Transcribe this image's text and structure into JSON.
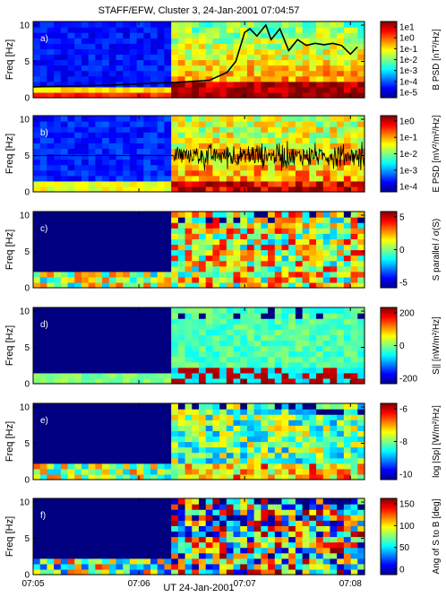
{
  "title": "STAFF/EFW, Cluster 3, 24-Jan-2001 07:04:57",
  "xlabel": "UT 24-Jan-2001",
  "time_ticks": [
    "07:05",
    "07:06",
    "07:07",
    "07:08"
  ],
  "chart_data": [
    {
      "type": "heatmap",
      "panel_label": "a)",
      "ylabel": "Freq [Hz]",
      "yticks": [
        0,
        5,
        10
      ],
      "ylim": [
        0,
        10.5
      ],
      "colorbar_label": "B PSD [nT²/Hz]",
      "colorbar_ticks": [
        "1e-5",
        "1e-4",
        "1e-3",
        "1e-2",
        "1e-1",
        "1e0",
        "1e1"
      ],
      "overlay_line": {
        "t": [
          "07:05:00",
          "07:05:40",
          "07:06:00",
          "07:06:20",
          "07:06:40",
          "07:06:50",
          "07:06:55",
          "07:07:00",
          "07:07:03",
          "07:07:07",
          "07:07:12",
          "07:07:15",
          "07:07:20",
          "07:07:25",
          "07:07:30",
          "07:07:35",
          "07:07:40",
          "07:07:45",
          "07:07:50",
          "07:07:55",
          "07:08:00",
          "07:08:04"
        ],
        "freq": [
          1.5,
          1.7,
          1.9,
          2.1,
          2.4,
          3.5,
          5.0,
          9.0,
          9.5,
          8.5,
          10.0,
          8.0,
          9.5,
          6.5,
          8.0,
          7.2,
          7.5,
          7.3,
          7.5,
          7.2,
          6.0,
          7.0
        ]
      }
    },
    {
      "type": "heatmap",
      "panel_label": "b)",
      "ylabel": "Freq [Hz]",
      "yticks": [
        0,
        5,
        10
      ],
      "ylim": [
        0,
        10.5
      ],
      "colorbar_label": "E PSD [mV²/m²/Hz]",
      "colorbar_ticks": [
        "1e-4",
        "1e-3",
        "1e-2",
        "1e-1",
        "1e0"
      ],
      "overlay_trace": "waveform centred near 5 Hz, quiet before 07:06:20, strongly fluctuating after"
    },
    {
      "type": "heatmap",
      "panel_label": "c)",
      "ylabel": "Freq [Hz]",
      "yticks": [
        0,
        5,
        10
      ],
      "ylim": [
        0,
        10.5
      ],
      "colorbar_label": "S parallel / σ(S)",
      "colorbar_ticks": [
        "-5",
        "0",
        "5"
      ]
    },
    {
      "type": "heatmap",
      "panel_label": "d)",
      "ylabel": "Freq [Hz]",
      "yticks": [
        0,
        5,
        10
      ],
      "ylim": [
        0,
        10.5
      ],
      "colorbar_label": "S|| [nW/m²/Hz]",
      "colorbar_ticks": [
        "-200",
        "0",
        "200"
      ]
    },
    {
      "type": "heatmap",
      "panel_label": "e)",
      "ylabel": "Freq [Hz]",
      "yticks": [
        0,
        5,
        10
      ],
      "ylim": [
        0,
        10.5
      ],
      "colorbar_label": "log |Sp| [W/m²/Hz]",
      "colorbar_ticks": [
        "-10",
        "-8",
        "-6"
      ]
    },
    {
      "type": "heatmap",
      "panel_label": "f)",
      "ylabel": "Freq [Hz]",
      "yticks": [
        0,
        5,
        10
      ],
      "ylim": [
        0,
        10.5
      ],
      "colorbar_label": "Ang of S to B [deg]",
      "colorbar_ticks": [
        "0",
        "50",
        "100",
        "150"
      ]
    }
  ]
}
